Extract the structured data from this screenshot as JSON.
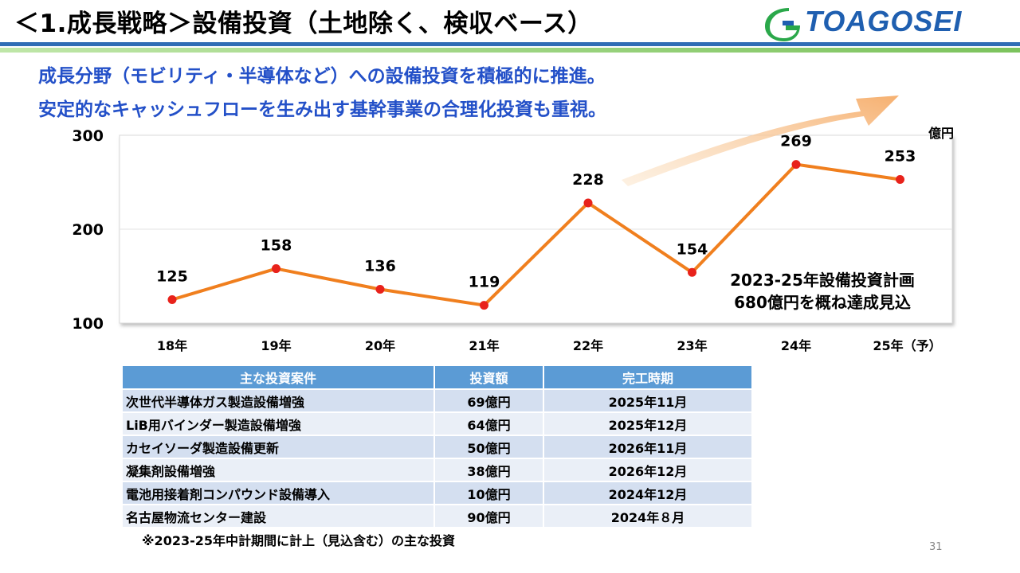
{
  "header": {
    "title": "＜1.成長戦略＞設備投資（土地除く、検収ベース）",
    "logo_text": "TOAGOSEI"
  },
  "lead": {
    "line1": "成長分野（モビリティ・半導体など）への設備投資を積極的に推進。",
    "line2": "安定的なキャッシュフローを生み出す基幹事業の合理化投資も重視。"
  },
  "chart_data": {
    "type": "line",
    "categories": [
      "18年",
      "19年",
      "20年",
      "21年",
      "22年",
      "23年",
      "24年",
      "25年（予）"
    ],
    "values": [
      125,
      158,
      136,
      119,
      228,
      154,
      269,
      253
    ],
    "unit": "億円",
    "yticks": [
      100,
      200,
      300
    ],
    "ylim": [
      100,
      300
    ],
    "line_color": "#f07f1e",
    "marker_color": "#e8221b",
    "annotation": [
      "2023-25年設備投資計画",
      "680億円を概ね達成見込"
    ]
  },
  "table": {
    "headers": [
      "主な投資案件",
      "投資額",
      "完工時期"
    ],
    "rows": [
      [
        "次世代半導体ガス製造設備増強",
        "69億円",
        "2025年11月"
      ],
      [
        "LiB用バインダー製造設備増強",
        "64億円",
        "2025年12月"
      ],
      [
        "カセイソーダ製造設備更新",
        "50億円",
        "2026年11月"
      ],
      [
        "凝集剤設備増強",
        "38億円",
        "2026年12月"
      ],
      [
        "電池用接着剤コンパウンド設備導入",
        "10億円",
        "2024年12月"
      ],
      [
        "名古屋物流センター建設",
        "90億円",
        "2024年８月"
      ]
    ]
  },
  "footnote": "※2023-25年中計期間に計上（見込含む）の主な投資",
  "page_number": "31",
  "colors": {
    "title_blue": "#2350c8",
    "header_blue": "#2f6db5",
    "table_header": "#5b9bd5"
  }
}
